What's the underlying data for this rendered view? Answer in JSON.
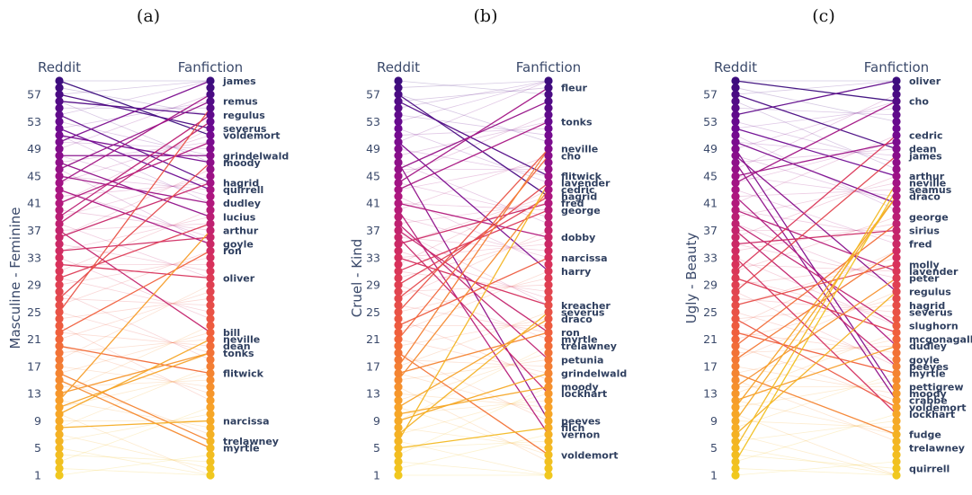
{
  "chart_data": [
    {
      "type": "slope",
      "panel_label": "(a)",
      "left_label": "Reddit",
      "right_label": "Fanfiction",
      "ylabel": "Masculine - Feminine",
      "ylim": [
        1,
        59
      ],
      "yticks": [
        1,
        5,
        9,
        13,
        17,
        21,
        25,
        29,
        33,
        37,
        41,
        45,
        49,
        53,
        57
      ],
      "labeled": [
        {
          "name": "james",
          "rank": 59
        },
        {
          "name": "remus",
          "rank": 56
        },
        {
          "name": "regulus",
          "rank": 54
        },
        {
          "name": "severus",
          "rank": 52
        },
        {
          "name": "voldemort",
          "rank": 51
        },
        {
          "name": "grindelwald",
          "rank": 48
        },
        {
          "name": "moody",
          "rank": 47
        },
        {
          "name": "hagrid",
          "rank": 44
        },
        {
          "name": "quirrell",
          "rank": 43
        },
        {
          "name": "dudley",
          "rank": 41
        },
        {
          "name": "lucius",
          "rank": 39
        },
        {
          "name": "arthur",
          "rank": 37
        },
        {
          "name": "goyle",
          "rank": 35
        },
        {
          "name": "ron",
          "rank": 34
        },
        {
          "name": "oliver",
          "rank": 30
        },
        {
          "name": "bill",
          "rank": 22
        },
        {
          "name": "neville",
          "rank": 21
        },
        {
          "name": "dean",
          "rank": 20
        },
        {
          "name": "tonks",
          "rank": 19
        },
        {
          "name": "flitwick",
          "rank": 16
        },
        {
          "name": "narcissa",
          "rank": 9
        },
        {
          "name": "trelawney",
          "rank": 6
        },
        {
          "name": "myrtle",
          "rank": 5
        }
      ],
      "links": [
        [
          59,
          51
        ],
        [
          57,
          52
        ],
        [
          56,
          54
        ],
        [
          54,
          44
        ],
        [
          52,
          43
        ],
        [
          51,
          47
        ],
        [
          50,
          59
        ],
        [
          48,
          48
        ],
        [
          47,
          39
        ],
        [
          46,
          56
        ],
        [
          45,
          41
        ],
        [
          44,
          57
        ],
        [
          43,
          35
        ],
        [
          41,
          50
        ],
        [
          39,
          54
        ],
        [
          38,
          53
        ],
        [
          37,
          22
        ],
        [
          36,
          44
        ],
        [
          34,
          36
        ],
        [
          32,
          30
        ],
        [
          30,
          38
        ],
        [
          27,
          47
        ],
        [
          25,
          55
        ],
        [
          22,
          34
        ],
        [
          20,
          16
        ],
        [
          16,
          6
        ],
        [
          15,
          5
        ],
        [
          13,
          19
        ],
        [
          12,
          37
        ],
        [
          11,
          19
        ],
        [
          10,
          21
        ],
        [
          8,
          9
        ]
      ]
    },
    {
      "type": "slope",
      "panel_label": "(b)",
      "left_label": "Reddit",
      "right_label": "Fanfiction",
      "ylabel": "Cruel - Kind",
      "ylim": [
        1,
        59
      ],
      "yticks": [
        1,
        5,
        9,
        13,
        17,
        21,
        25,
        29,
        33,
        37,
        41,
        45,
        49,
        53,
        57
      ],
      "labeled": [
        {
          "name": "fleur",
          "rank": 58
        },
        {
          "name": "tonks",
          "rank": 53
        },
        {
          "name": "neville",
          "rank": 49
        },
        {
          "name": "cho",
          "rank": 48
        },
        {
          "name": "flitwick",
          "rank": 45
        },
        {
          "name": "lavender",
          "rank": 44
        },
        {
          "name": "cedric",
          "rank": 43
        },
        {
          "name": "hagrid",
          "rank": 42
        },
        {
          "name": "fred",
          "rank": 41
        },
        {
          "name": "george",
          "rank": 40
        },
        {
          "name": "dobby",
          "rank": 36
        },
        {
          "name": "narcissa",
          "rank": 33
        },
        {
          "name": "harry",
          "rank": 31
        },
        {
          "name": "kreacher",
          "rank": 26
        },
        {
          "name": "severus",
          "rank": 25
        },
        {
          "name": "draco",
          "rank": 24
        },
        {
          "name": "ron",
          "rank": 22
        },
        {
          "name": "myrtle",
          "rank": 21
        },
        {
          "name": "trelawney",
          "rank": 20
        },
        {
          "name": "petunia",
          "rank": 18
        },
        {
          "name": "grindelwald",
          "rank": 16
        },
        {
          "name": "moody",
          "rank": 14
        },
        {
          "name": "lockhart",
          "rank": 13
        },
        {
          "name": "peeves",
          "rank": 9
        },
        {
          "name": "filch",
          "rank": 8
        },
        {
          "name": "vernon",
          "rank": 7
        },
        {
          "name": "voldemort",
          "rank": 4
        }
      ],
      "links": [
        [
          57,
          42
        ],
        [
          56,
          45
        ],
        [
          50,
          31
        ],
        [
          47,
          9
        ],
        [
          46,
          56
        ],
        [
          44,
          58
        ],
        [
          43,
          53
        ],
        [
          41,
          36
        ],
        [
          40,
          7
        ],
        [
          38,
          18
        ],
        [
          37,
          22
        ],
        [
          36,
          13
        ],
        [
          35,
          41
        ],
        [
          33,
          26
        ],
        [
          31,
          40
        ],
        [
          29,
          42
        ],
        [
          27,
          44
        ],
        [
          25,
          49
        ],
        [
          23,
          33
        ],
        [
          21,
          48
        ],
        [
          19,
          4
        ],
        [
          17,
          49
        ],
        [
          16,
          22
        ],
        [
          15,
          43
        ],
        [
          11,
          24
        ],
        [
          10,
          14
        ],
        [
          9,
          16
        ],
        [
          7,
          25
        ],
        [
          6,
          44
        ],
        [
          5,
          8
        ]
      ]
    },
    {
      "type": "slope",
      "panel_label": "(c)",
      "left_label": "Reddit",
      "right_label": "Fanfiction",
      "ylabel": "Ugly - Beauty",
      "ylim": [
        1,
        59
      ],
      "yticks": [
        1,
        5,
        9,
        13,
        17,
        21,
        25,
        29,
        33,
        37,
        41,
        45,
        49,
        53,
        57
      ],
      "labeled": [
        {
          "name": "oliver",
          "rank": 59
        },
        {
          "name": "cho",
          "rank": 56
        },
        {
          "name": "cedric",
          "rank": 51
        },
        {
          "name": "dean",
          "rank": 49
        },
        {
          "name": "james",
          "rank": 48
        },
        {
          "name": "arthur",
          "rank": 45
        },
        {
          "name": "neville",
          "rank": 44
        },
        {
          "name": "seamus",
          "rank": 43
        },
        {
          "name": "draco",
          "rank": 42
        },
        {
          "name": "george",
          "rank": 39
        },
        {
          "name": "sirius",
          "rank": 37
        },
        {
          "name": "fred",
          "rank": 35
        },
        {
          "name": "molly",
          "rank": 32
        },
        {
          "name": "lavender",
          "rank": 31
        },
        {
          "name": "peter",
          "rank": 30
        },
        {
          "name": "regulus",
          "rank": 28
        },
        {
          "name": "hagrid",
          "rank": 26
        },
        {
          "name": "severus",
          "rank": 25
        },
        {
          "name": "slughorn",
          "rank": 23
        },
        {
          "name": "mcgonagall",
          "rank": 21
        },
        {
          "name": "dudley",
          "rank": 20
        },
        {
          "name": "goyle",
          "rank": 18
        },
        {
          "name": "peeves",
          "rank": 17
        },
        {
          "name": "myrtle",
          "rank": 16
        },
        {
          "name": "pettigrew",
          "rank": 14
        },
        {
          "name": "moody",
          "rank": 13
        },
        {
          "name": "crabbe",
          "rank": 12
        },
        {
          "name": "voldemort",
          "rank": 11
        },
        {
          "name": "lockhart",
          "rank": 10
        },
        {
          "name": "fudge",
          "rank": 7
        },
        {
          "name": "trelawney",
          "rank": 5
        },
        {
          "name": "quirrell",
          "rank": 2
        }
      ],
      "links": [
        [
          59,
          56
        ],
        [
          57,
          49
        ],
        [
          54,
          59
        ],
        [
          52,
          45
        ],
        [
          50,
          41
        ],
        [
          49,
          13
        ],
        [
          48,
          28
        ],
        [
          47,
          12
        ],
        [
          45,
          50
        ],
        [
          44,
          56
        ],
        [
          42,
          20
        ],
        [
          40,
          31
        ],
        [
          38,
          23
        ],
        [
          37,
          17
        ],
        [
          35,
          37
        ],
        [
          33,
          10
        ],
        [
          31,
          51
        ],
        [
          30,
          22
        ],
        [
          28,
          48
        ],
        [
          26,
          32
        ],
        [
          24,
          11
        ],
        [
          22,
          16
        ],
        [
          20,
          38
        ],
        [
          18,
          34
        ],
        [
          16,
          7
        ],
        [
          14,
          30
        ],
        [
          12,
          20
        ],
        [
          11,
          42
        ],
        [
          9,
          42
        ],
        [
          7,
          28
        ],
        [
          5,
          44
        ],
        [
          3,
          43
        ]
      ]
    }
  ]
}
